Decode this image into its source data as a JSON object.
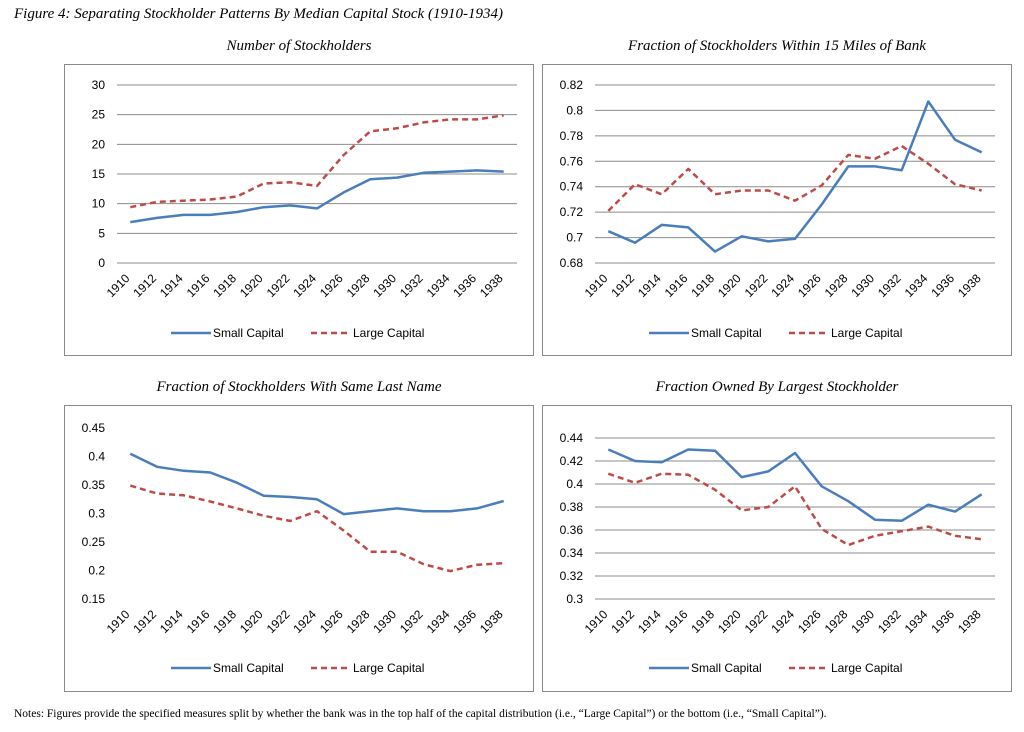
{
  "figure_title": "Figure 4: Separating Stockholder Patterns By Median Capital Stock (1910-1934)",
  "notes": "Notes: Figures provide the specified measures split by whether the bank was in the top half of the capital distribution (i.e., “Large Capital”) or the bottom (i.e., “Small Capital”).",
  "colors": {
    "small": "#4a7ebb",
    "large": "#be4b48",
    "grid": "#8c8c8c"
  },
  "chart_data": [
    {
      "type": "line",
      "title": "Number of Stockholders",
      "x": [
        "1910",
        "1912",
        "1914",
        "1916",
        "1918",
        "1920",
        "1922",
        "1924",
        "1926",
        "1928",
        "1930",
        "1932",
        "1934",
        "1936",
        "1938"
      ],
      "yticks": [
        "0",
        "5",
        "10",
        "15",
        "20",
        "25",
        "30"
      ],
      "ylim": [
        0,
        30
      ],
      "legend": "bottom",
      "grid": true,
      "series": [
        {
          "name": "Small Capital",
          "style": "solid",
          "values": [
            6.9,
            7.6,
            8.1,
            8.1,
            8.6,
            9.4,
            9.7,
            9.2,
            11.9,
            14.1,
            14.4,
            15.2,
            15.4,
            15.6,
            15.4
          ]
        },
        {
          "name": "Large Capital",
          "style": "dashed",
          "values": [
            9.4,
            10.3,
            10.5,
            10.7,
            11.2,
            13.4,
            13.6,
            13.0,
            18.2,
            22.2,
            22.7,
            23.7,
            24.2,
            24.2,
            24.9
          ]
        }
      ]
    },
    {
      "type": "line",
      "title": "Fraction of Stockholders Within 15 Miles of Bank",
      "x": [
        "1910",
        "1912",
        "1914",
        "1916",
        "1918",
        "1920",
        "1922",
        "1924",
        "1926",
        "1928",
        "1930",
        "1932",
        "1934",
        "1936",
        "1938"
      ],
      "yticks": [
        "0.68",
        "0.7",
        "0.72",
        "0.74",
        "0.76",
        "0.78",
        "0.8",
        "0.82"
      ],
      "ylim": [
        0.68,
        0.82
      ],
      "legend": "bottom",
      "grid": true,
      "series": [
        {
          "name": "Small Capital",
          "style": "solid",
          "values": [
            0.705,
            0.696,
            0.71,
            0.708,
            0.689,
            0.701,
            0.697,
            0.699,
            0.726,
            0.756,
            0.756,
            0.753,
            0.807,
            0.777,
            0.767
          ]
        },
        {
          "name": "Large Capital",
          "style": "dashed",
          "values": [
            0.721,
            0.742,
            0.734,
            0.754,
            0.734,
            0.737,
            0.737,
            0.729,
            0.741,
            0.765,
            0.762,
            0.772,
            0.758,
            0.742,
            0.737
          ]
        }
      ]
    },
    {
      "type": "line",
      "title": "Fraction of Stockholders With Same Last Name",
      "x": [
        "1910",
        "1912",
        "1914",
        "1916",
        "1918",
        "1920",
        "1922",
        "1924",
        "1926",
        "1928",
        "1930",
        "1932",
        "1934",
        "1936",
        "1938"
      ],
      "yticks": [
        "0.15",
        "0.2",
        "0.25",
        "0.3",
        "0.35",
        "0.4",
        "0.45"
      ],
      "ylim": [
        0.15,
        0.45
      ],
      "legend": "bottom",
      "grid": false,
      "series": [
        {
          "name": "Small Capital",
          "style": "solid",
          "values": [
            0.405,
            0.382,
            0.375,
            0.372,
            0.354,
            0.331,
            0.329,
            0.325,
            0.299,
            0.304,
            0.309,
            0.304,
            0.304,
            0.309,
            0.322
          ]
        },
        {
          "name": "Large Capital",
          "style": "dashed",
          "values": [
            0.349,
            0.335,
            0.332,
            0.321,
            0.309,
            0.296,
            0.287,
            0.304,
            0.27,
            0.233,
            0.233,
            0.211,
            0.199,
            0.21,
            0.213
          ]
        }
      ]
    },
    {
      "type": "line",
      "title": "Fraction Owned By Largest Stockholder",
      "x": [
        "1910",
        "1912",
        "1914",
        "1916",
        "1918",
        "1920",
        "1922",
        "1924",
        "1926",
        "1928",
        "1930",
        "1932",
        "1934",
        "1936",
        "1938"
      ],
      "yticks": [
        "0.3",
        "0.32",
        "0.34",
        "0.36",
        "0.38",
        "0.4",
        "0.42",
        "0.44"
      ],
      "ylim": [
        0.3,
        0.44
      ],
      "legend": "bottom",
      "grid": true,
      "series": [
        {
          "name": "Small Capital",
          "style": "solid",
          "values": [
            0.43,
            0.42,
            0.419,
            0.43,
            0.429,
            0.406,
            0.411,
            0.427,
            0.398,
            0.385,
            0.369,
            0.368,
            0.382,
            0.376,
            0.391
          ]
        },
        {
          "name": "Large Capital",
          "style": "dashed",
          "values": [
            0.409,
            0.401,
            0.409,
            0.408,
            0.395,
            0.377,
            0.38,
            0.398,
            0.361,
            0.347,
            0.355,
            0.359,
            0.363,
            0.355,
            0.352
          ]
        }
      ]
    }
  ]
}
